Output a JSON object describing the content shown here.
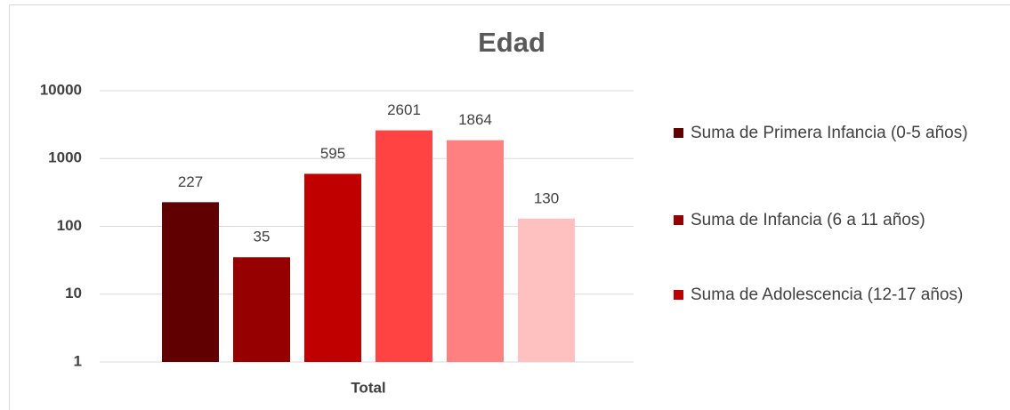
{
  "chart_data": {
    "type": "bar",
    "title": "Edad",
    "log": true,
    "categories": [
      "Total"
    ],
    "series": [
      {
        "name": "Suma de Primera Infancia (0-5 años)",
        "color": "#600000",
        "values": [
          227
        ]
      },
      {
        "name": "Suma de Infancia (6 a 11 años)",
        "color": "#960000",
        "values": [
          35
        ]
      },
      {
        "name": "Suma de Adolescencia (12-17 años)",
        "color": "#c00000",
        "values": [
          595
        ]
      },
      {
        "color": "#ff4343",
        "values": [
          2601
        ]
      },
      {
        "color": "#ff8080",
        "values": [
          1864
        ]
      },
      {
        "color": "#ffc0c0",
        "values": [
          130
        ]
      }
    ],
    "ylim": [
      1,
      10000
    ],
    "yticks": [
      1,
      10,
      100,
      1000,
      10000
    ],
    "grid": true,
    "legend": "right"
  }
}
